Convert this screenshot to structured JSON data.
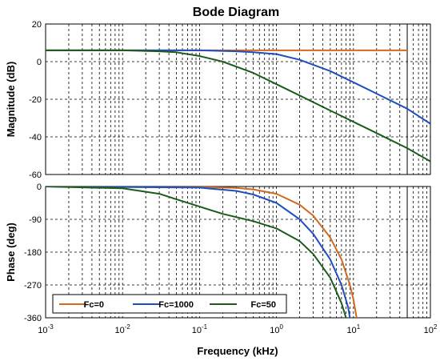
{
  "chart_data": {
    "type": "line",
    "title": "Bode Diagram",
    "xlabel": "Frequency  (kHz)",
    "xscale": "log",
    "xlim": [
      0.001,
      100
    ],
    "x_ticks": [
      {
        "base": "10",
        "exp": "-3",
        "value": 0.001
      },
      {
        "base": "10",
        "exp": "-2",
        "value": 0.01
      },
      {
        "base": "10",
        "exp": "-1",
        "value": 0.1
      },
      {
        "base": "10",
        "exp": "0",
        "value": 1
      },
      {
        "base": "10",
        "exp": "1",
        "value": 10
      },
      {
        "base": "10",
        "exp": "2",
        "value": 100
      }
    ],
    "grid": true,
    "legend_position": "bottom-left",
    "colors": {
      "Fc=0": "#d2691e",
      "Fc=1000": "#1f4fbf",
      "Fc=50": "#1a5c1a"
    },
    "panels": [
      {
        "id": "magnitude",
        "ylabel": "Magnitude (dB)",
        "ylim": [
          -60,
          20
        ],
        "y_ticks": [
          "20",
          "0",
          "-20",
          "-40",
          "-60"
        ],
        "series": [
          {
            "name": "Fc=0",
            "points": [
              [
                0.001,
                6
              ],
              [
                0.01,
                6
              ],
              [
                0.1,
                6
              ],
              [
                1,
                6
              ],
              [
                10,
                6
              ],
              [
                50,
                6
              ]
            ]
          },
          {
            "name": "Fc=1000",
            "points": [
              [
                0.001,
                6
              ],
              [
                0.01,
                6
              ],
              [
                0.1,
                6
              ],
              [
                0.3,
                5.5
              ],
              [
                0.5,
                5
              ],
              [
                1,
                4
              ],
              [
                2,
                1
              ],
              [
                5,
                -5
              ],
              [
                10,
                -11
              ],
              [
                20,
                -17
              ],
              [
                50,
                -25
              ],
              [
                100,
                -33
              ]
            ]
          },
          {
            "name": "Fc=50",
            "points": [
              [
                0.001,
                6
              ],
              [
                0.01,
                6
              ],
              [
                0.03,
                5.5
              ],
              [
                0.05,
                5
              ],
              [
                0.1,
                3
              ],
              [
                0.2,
                0
              ],
              [
                0.5,
                -6
              ],
              [
                1,
                -12
              ],
              [
                2,
                -18
              ],
              [
                5,
                -26
              ],
              [
                10,
                -32
              ],
              [
                20,
                -38
              ],
              [
                50,
                -46
              ],
              [
                100,
                -53
              ]
            ]
          }
        ]
      },
      {
        "id": "phase",
        "ylabel": "Phase (deg)",
        "ylim": [
          -360,
          0
        ],
        "y_ticks": [
          "0",
          "-90",
          "-180",
          "-270",
          "-360"
        ],
        "series": [
          {
            "name": "Fc=0",
            "points": [
              [
                0.001,
                0
              ],
              [
                0.1,
                -1
              ],
              [
                0.3,
                -4
              ],
              [
                0.5,
                -8
              ],
              [
                1,
                -20
              ],
              [
                2,
                -50
              ],
              [
                3,
                -80
              ],
              [
                5,
                -140
              ],
              [
                7,
                -200
              ],
              [
                9,
                -270
              ],
              [
                10,
                -310
              ],
              [
                11,
                -360
              ]
            ]
          },
          {
            "name": "Fc=1000",
            "points": [
              [
                0.001,
                0
              ],
              [
                0.1,
                -3
              ],
              [
                0.3,
                -12
              ],
              [
                0.5,
                -22
              ],
              [
                1,
                -45
              ],
              [
                2,
                -90
              ],
              [
                3,
                -130
              ],
              [
                5,
                -200
              ],
              [
                7,
                -270
              ],
              [
                8.5,
                -330
              ],
              [
                9,
                -360
              ]
            ]
          },
          {
            "name": "Fc=50",
            "points": [
              [
                0.001,
                0
              ],
              [
                0.01,
                -5
              ],
              [
                0.03,
                -20
              ],
              [
                0.05,
                -35
              ],
              [
                0.1,
                -55
              ],
              [
                0.2,
                -75
              ],
              [
                0.5,
                -95
              ],
              [
                1,
                -115
              ],
              [
                2,
                -150
              ],
              [
                3,
                -185
              ],
              [
                5,
                -250
              ],
              [
                7,
                -320
              ],
              [
                8,
                -360
              ]
            ]
          }
        ]
      }
    ],
    "legend": [
      "Fc=0",
      "Fc=1000",
      "Fc=50"
    ]
  }
}
